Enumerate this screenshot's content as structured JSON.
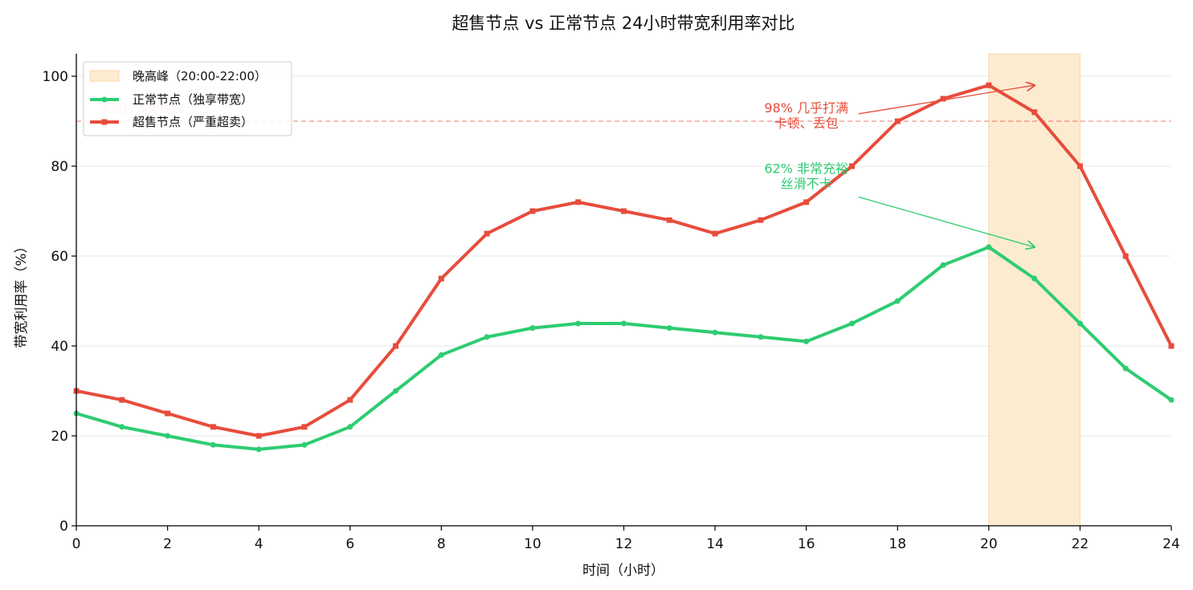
{
  "chart_data": {
    "type": "line",
    "title": "超售节点 vs 正常节点 24小时带宽利用率对比",
    "xlabel": "时间（小时）",
    "ylabel": "带宽利用率（%）",
    "xlim": [
      0,
      24
    ],
    "ylim": [
      0,
      105
    ],
    "xticks": [
      0,
      2,
      4,
      6,
      8,
      10,
      12,
      14,
      16,
      18,
      20,
      22,
      24
    ],
    "yticks": [
      0,
      20,
      40,
      60,
      80,
      100
    ],
    "grid": "horizontal",
    "legend_position": "upper-left",
    "x": [
      0,
      1,
      2,
      3,
      4,
      5,
      6,
      7,
      8,
      9,
      10,
      11,
      12,
      13,
      14,
      15,
      16,
      17,
      18,
      19,
      20,
      21,
      22,
      23,
      24
    ],
    "series": [
      {
        "name": "正常节点（独享带宽）",
        "color": "#2ecc71",
        "marker": "circle",
        "values": [
          25,
          22,
          20,
          18,
          17,
          18,
          22,
          30,
          38,
          42,
          44,
          45,
          45,
          44,
          43,
          42,
          41,
          45,
          50,
          58,
          62,
          55,
          45,
          35,
          28
        ]
      },
      {
        "name": "超售节点（严重超卖）",
        "color": "#e74c3c",
        "marker": "square",
        "values": [
          30,
          28,
          25,
          22,
          20,
          22,
          28,
          40,
          55,
          65,
          70,
          72,
          70,
          68,
          65,
          68,
          72,
          80,
          90,
          95,
          98,
          92,
          80,
          60,
          40
        ]
      }
    ],
    "shaded_region": {
      "label": "晚高峰（20:00-22:00）",
      "x_start": 20,
      "x_end": 22,
      "color": "#fdebd0"
    },
    "reference_line": {
      "y": 90,
      "label": "带宽打满警戒线",
      "color": "#e74c3c"
    },
    "annotations": [
      {
        "line1": "98% 几乎打满",
        "line2": "卡顿、丢包",
        "target_x": 21,
        "target_y": 98,
        "text_x": 16.0,
        "text_y": 92,
        "color": "#e74c3c"
      },
      {
        "line1": "62% 非常充裕",
        "line2": "丝滑不卡",
        "target_x": 21,
        "target_y": 62,
        "text_x": 16.0,
        "text_y": 78.5,
        "color": "#2ecc71"
      }
    ]
  }
}
